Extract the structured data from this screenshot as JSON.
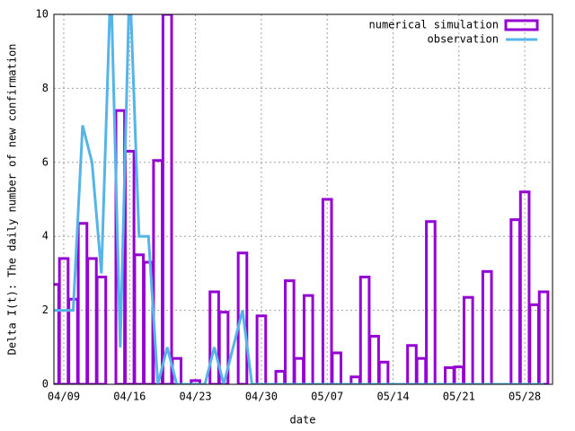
{
  "chart_data": {
    "type": "bar",
    "xlabel": "date",
    "ylabel": "Delta I(t): The daily number of new confirmation",
    "categories": [
      null,
      "04/09",
      null,
      null,
      null,
      null,
      null,
      null,
      "04/16",
      null,
      null,
      null,
      null,
      null,
      null,
      "04/23",
      null,
      null,
      null,
      null,
      null,
      null,
      "04/30",
      null,
      null,
      null,
      null,
      null,
      null,
      "05/07",
      null,
      null,
      null,
      null,
      null,
      null,
      "05/14",
      null,
      null,
      null,
      null,
      null,
      null,
      "05/21",
      null,
      null,
      null,
      null,
      null,
      null,
      "05/28",
      null,
      null
    ],
    "series": [
      {
        "name": "numerical simulation",
        "type": "bar",
        "color": "#9400d3",
        "values": [
          2.7,
          3.4,
          2.3,
          4.35,
          3.4,
          2.9,
          0,
          7.4,
          6.3,
          3.5,
          3.3,
          6.05,
          10,
          0.7,
          0,
          0.1,
          0,
          2.5,
          1.95,
          0,
          3.55,
          0,
          1.85,
          0,
          0.35,
          2.8,
          0.7,
          2.4,
          0,
          5.0,
          0.85,
          0,
          0.2,
          2.9,
          1.3,
          0.6,
          0,
          0,
          1.05,
          0.7,
          4.4,
          0,
          0.45,
          0.47,
          2.35,
          0,
          3.05,
          0,
          0,
          4.45,
          5.2,
          2.15,
          2.5
        ]
      },
      {
        "name": "observation",
        "type": "line",
        "color": "#56b4e9",
        "values": [
          2,
          2,
          2,
          7,
          6,
          3,
          11,
          1,
          11,
          4,
          4,
          0,
          1,
          0,
          0,
          0,
          0,
          1,
          0,
          1,
          2,
          0,
          0,
          0,
          0,
          0,
          0,
          0,
          0,
          0,
          0,
          0,
          0,
          0,
          0,
          0,
          0,
          0,
          0,
          0,
          0,
          0,
          0,
          0,
          0,
          0,
          0,
          0,
          0,
          0,
          0,
          0,
          0
        ]
      }
    ],
    "ylim": [
      0,
      10
    ],
    "yticks": [
      0,
      2,
      4,
      6,
      8,
      10
    ],
    "grid": true,
    "legend": "top-right"
  }
}
